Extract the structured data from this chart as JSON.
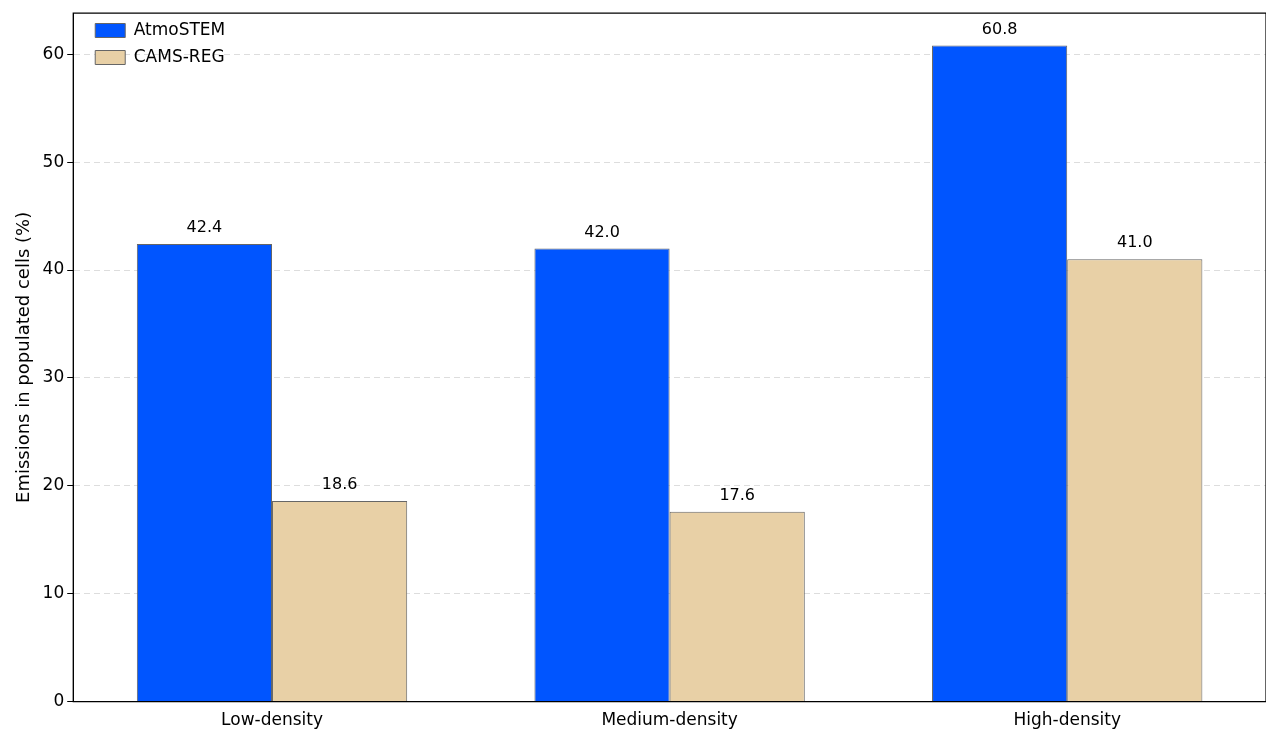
{
  "chart_data": {
    "type": "bar",
    "ylabel": "Emissions in populated cells (%)",
    "categories": [
      "Low-density",
      "Medium-density",
      "High-density"
    ],
    "series": [
      {
        "name": "AtmoSTEM",
        "color": "#0055ff",
        "values": [
          42.4,
          42.0,
          60.8
        ],
        "value_labels": [
          "42.4",
          "42.0",
          "60.8"
        ]
      },
      {
        "name": "CAMS-REG",
        "color": "#e8d0a6",
        "values": [
          18.6,
          17.6,
          41.0
        ],
        "value_labels": [
          "18.6",
          "17.6",
          "41.0"
        ]
      }
    ],
    "ylim": [
      0,
      63.8
    ],
    "yticks": [
      0,
      10,
      20,
      30,
      40,
      50,
      60
    ],
    "grid": "y",
    "legend": "top left"
  }
}
